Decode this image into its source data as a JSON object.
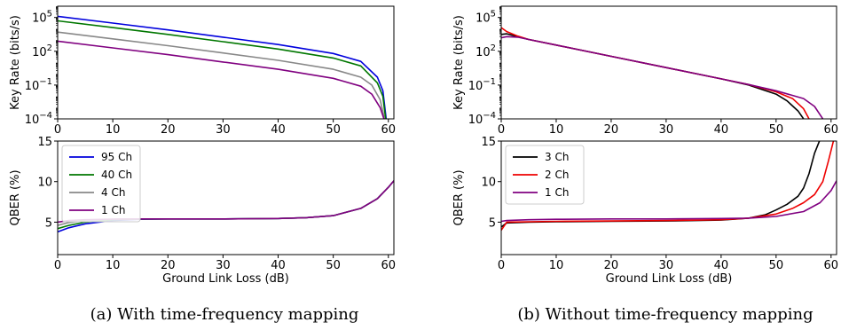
{
  "figure": {
    "caption_a": "(a) With time-frequency mapping",
    "caption_b": "(b) Without time-frequency mapping"
  },
  "chart_data": [
    {
      "id": "a-top",
      "type": "line",
      "xlabel": "",
      "ylabel": "Key Rate (bits/s)",
      "yscale": "log",
      "xlim": [
        0,
        61
      ],
      "ylim_log10": [
        -4,
        6
      ],
      "xticks": [
        0,
        10,
        20,
        30,
        40,
        50,
        60
      ],
      "yticks": [
        {
          "value_log10": -4,
          "base": "10",
          "exp": "−4"
        },
        {
          "value_log10": -1,
          "base": "10",
          "exp": "−1"
        },
        {
          "value_log10": 2,
          "base": "10",
          "exp": "2"
        },
        {
          "value_log10": 5,
          "base": "10",
          "exp": "5"
        }
      ],
      "grid": false,
      "series": [
        {
          "color": "#0000dd",
          "x": [
            0,
            10,
            20,
            30,
            40,
            50,
            55,
            58,
            59,
            59.6
          ],
          "y_log10": [
            5.1,
            4.5,
            3.9,
            3.25,
            2.6,
            1.8,
            1.1,
            -0.3,
            -1.5,
            -4
          ]
        },
        {
          "color": "#007700",
          "x": [
            0,
            10,
            20,
            30,
            40,
            50,
            55,
            58,
            59,
            59.5
          ],
          "y_log10": [
            4.7,
            4.1,
            3.5,
            2.85,
            2.2,
            1.4,
            0.7,
            -0.8,
            -2.0,
            -4
          ]
        },
        {
          "color": "#888888",
          "x": [
            0,
            10,
            20,
            30,
            40,
            50,
            55,
            57,
            58.5,
            59.3
          ],
          "y_log10": [
            3.7,
            3.1,
            2.5,
            1.85,
            1.2,
            0.4,
            -0.3,
            -1.0,
            -2.3,
            -4
          ]
        },
        {
          "color": "#800080",
          "x": [
            0,
            10,
            20,
            30,
            40,
            50,
            55,
            57,
            58.5,
            59.2
          ],
          "y_log10": [
            2.9,
            2.3,
            1.7,
            1.05,
            0.4,
            -0.4,
            -1.1,
            -1.8,
            -3.0,
            -4
          ]
        }
      ]
    },
    {
      "id": "a-bottom",
      "type": "line",
      "xlabel": "Ground Link Loss (dB)",
      "ylabel": "QBER (%)",
      "yscale": "linear",
      "xlim": [
        0,
        61
      ],
      "ylim": [
        1,
        15
      ],
      "xticks": [
        0,
        10,
        20,
        30,
        40,
        50,
        60
      ],
      "yticks": [
        5,
        10,
        15
      ],
      "grid": false,
      "legend": {
        "placement": "upper-left",
        "entries": [
          {
            "label": "95 Ch",
            "color": "#0000dd"
          },
          {
            "label": "40 Ch",
            "color": "#007700"
          },
          {
            "label": "4 Ch",
            "color": "#888888"
          },
          {
            "label": "1 Ch",
            "color": "#800080"
          }
        ]
      },
      "series": [
        {
          "color": "#0000dd",
          "x": [
            0,
            2,
            5,
            10,
            15,
            20,
            30,
            40,
            45,
            50,
            55,
            58,
            60,
            61
          ],
          "y": [
            3.8,
            4.3,
            4.8,
            5.2,
            5.35,
            5.4,
            5.4,
            5.45,
            5.55,
            5.8,
            6.7,
            7.9,
            9.3,
            10.1
          ]
        },
        {
          "color": "#007700",
          "x": [
            0,
            2,
            5,
            10,
            15,
            20,
            30,
            40,
            45,
            50,
            55,
            58,
            60,
            61
          ],
          "y": [
            4.2,
            4.6,
            5.0,
            5.3,
            5.38,
            5.4,
            5.4,
            5.45,
            5.55,
            5.8,
            6.7,
            7.9,
            9.3,
            10.1
          ]
        },
        {
          "color": "#888888",
          "x": [
            0,
            2,
            5,
            10,
            15,
            20,
            30,
            40,
            45,
            50,
            55,
            58,
            60,
            61
          ],
          "y": [
            4.6,
            4.95,
            5.2,
            5.35,
            5.4,
            5.4,
            5.4,
            5.45,
            5.55,
            5.8,
            6.7,
            7.9,
            9.3,
            10.1
          ]
        },
        {
          "color": "#800080",
          "x": [
            0,
            2,
            5,
            10,
            15,
            20,
            30,
            40,
            45,
            50,
            55,
            58,
            60,
            61
          ],
          "y": [
            5.0,
            5.2,
            5.3,
            5.38,
            5.4,
            5.4,
            5.4,
            5.45,
            5.55,
            5.8,
            6.7,
            7.9,
            9.3,
            10.1
          ]
        }
      ]
    },
    {
      "id": "b-top",
      "type": "line",
      "xlabel": "",
      "ylabel": "Key Rate (bits/s)",
      "yscale": "log",
      "xlim": [
        0,
        61
      ],
      "ylim_log10": [
        -4,
        6
      ],
      "xticks": [
        0,
        10,
        20,
        30,
        40,
        50,
        60
      ],
      "yticks": [
        {
          "value_log10": -4,
          "base": "10",
          "exp": "−4"
        },
        {
          "value_log10": -1,
          "base": "10",
          "exp": "−1"
        },
        {
          "value_log10": 2,
          "base": "10",
          "exp": "2"
        },
        {
          "value_log10": 5,
          "base": "10",
          "exp": "5"
        }
      ],
      "grid": false,
      "series": [
        {
          "color": "#000000",
          "x": [
            0,
            1,
            3,
            5,
            10,
            20,
            30,
            40,
            45,
            50,
            52,
            54,
            55
          ],
          "y_log10": [
            3.5,
            3.55,
            3.3,
            3.05,
            2.55,
            1.55,
            0.55,
            -0.45,
            -1.0,
            -1.8,
            -2.4,
            -3.3,
            -4
          ]
        },
        {
          "color": "#ee0000",
          "x": [
            0,
            1,
            3,
            5,
            10,
            20,
            30,
            40,
            45,
            50,
            53,
            55,
            56
          ],
          "y_log10": [
            4.1,
            3.75,
            3.35,
            3.05,
            2.55,
            1.55,
            0.55,
            -0.45,
            -0.95,
            -1.6,
            -2.2,
            -3.1,
            -4
          ]
        },
        {
          "color": "#800080",
          "x": [
            0,
            1,
            3,
            5,
            10,
            20,
            30,
            40,
            45,
            50,
            55,
            57,
            58.5
          ],
          "y_log10": [
            3.2,
            3.3,
            3.25,
            3.05,
            2.55,
            1.55,
            0.55,
            -0.45,
            -0.95,
            -1.5,
            -2.2,
            -2.9,
            -4
          ]
        }
      ]
    },
    {
      "id": "b-bottom",
      "type": "line",
      "xlabel": "Ground Link Loss (dB)",
      "ylabel": "QBER (%)",
      "yscale": "linear",
      "xlim": [
        0,
        61
      ],
      "ylim": [
        1,
        15
      ],
      "xticks": [
        0,
        10,
        20,
        30,
        40,
        50,
        60
      ],
      "yticks": [
        5,
        10,
        15
      ],
      "grid": false,
      "legend": {
        "placement": "upper-left",
        "entries": [
          {
            "label": "3 Ch",
            "color": "#000000"
          },
          {
            "label": "2 Ch",
            "color": "#ee0000"
          },
          {
            "label": "1 Ch",
            "color": "#800080"
          }
        ]
      },
      "series": [
        {
          "color": "#000000",
          "x": [
            0,
            1,
            5,
            10,
            20,
            30,
            40,
            45,
            48,
            50,
            52,
            54,
            55,
            56,
            57,
            58
          ],
          "y": [
            4.4,
            4.9,
            5.0,
            5.05,
            5.1,
            5.15,
            5.25,
            5.5,
            5.9,
            6.5,
            7.2,
            8.2,
            9.2,
            11.0,
            13.5,
            15.2
          ]
        },
        {
          "color": "#ee0000",
          "x": [
            0,
            1,
            5,
            10,
            20,
            30,
            40,
            45,
            50,
            53,
            55,
            57,
            58.5,
            59.5,
            60.5
          ],
          "y": [
            4.0,
            5.0,
            5.05,
            5.1,
            5.15,
            5.2,
            5.3,
            5.5,
            6.0,
            6.7,
            7.4,
            8.4,
            10.0,
            12.5,
            15.2
          ]
        },
        {
          "color": "#800080",
          "x": [
            0,
            1,
            5,
            10,
            20,
            30,
            40,
            45,
            50,
            55,
            58,
            60,
            61
          ],
          "y": [
            5.1,
            5.2,
            5.3,
            5.35,
            5.4,
            5.4,
            5.45,
            5.5,
            5.7,
            6.3,
            7.4,
            8.9,
            10.1
          ]
        }
      ]
    }
  ]
}
